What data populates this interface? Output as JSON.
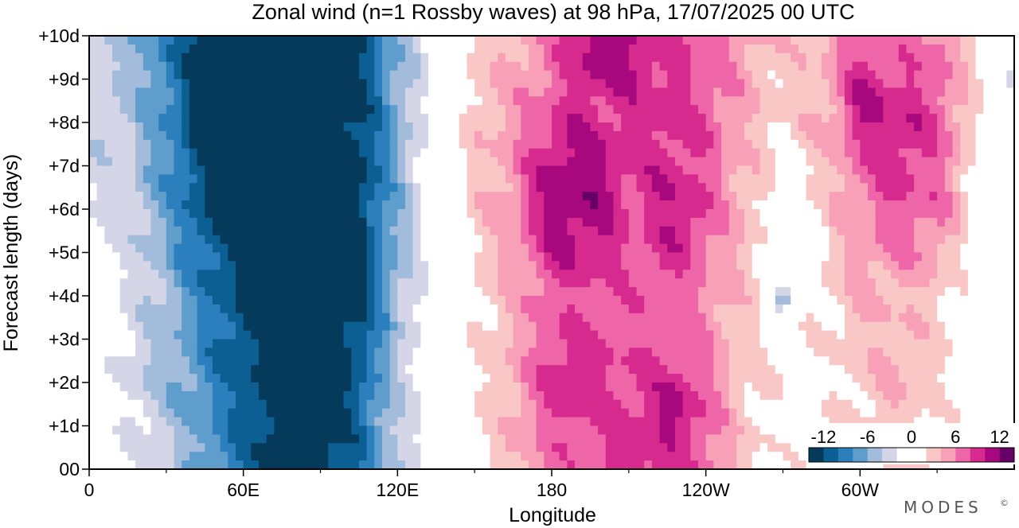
{
  "chart_data": {
    "type": "heatmap",
    "title": "Zonal wind (n=1 Rossby waves) at 98 hPa,  17/07/2025  00 UTC",
    "xlabel": "Longitude",
    "ylabel": "Forecast length (days)",
    "x_ticks": [
      {
        "lon": 0,
        "label": "0"
      },
      {
        "lon": 60,
        "label": "60E"
      },
      {
        "lon": 120,
        "label": "120E"
      },
      {
        "lon": 180,
        "label": "180"
      },
      {
        "lon": 240,
        "label": "120W"
      },
      {
        "lon": 300,
        "label": "60W"
      }
    ],
    "x_minor_ticks": [
      30,
      90,
      150,
      210,
      270,
      330
    ],
    "y_ticks": [
      {
        "day": 0,
        "label": "00"
      },
      {
        "day": 1,
        "label": "+1d"
      },
      {
        "day": 2,
        "label": "+2d"
      },
      {
        "day": 3,
        "label": "+3d"
      },
      {
        "day": 4,
        "label": "+4d"
      },
      {
        "day": 5,
        "label": "+5d"
      },
      {
        "day": 6,
        "label": "+6d"
      },
      {
        "day": 7,
        "label": "+7d"
      },
      {
        "day": 8,
        "label": "+8d"
      },
      {
        "day": 9,
        "label": "+9d"
      },
      {
        "day": 10,
        "label": "+10d"
      }
    ],
    "xlim": [
      0,
      360
    ],
    "ylim": [
      0,
      10
    ],
    "units": "m/s",
    "levels": [
      -14,
      -12,
      -10,
      -8,
      -6,
      -4,
      -2,
      2,
      4,
      6,
      8,
      10,
      12,
      14
    ],
    "colorbar": {
      "labels": [
        {
          "value": -12,
          "text": "-12"
        },
        {
          "value": -6,
          "text": "-6"
        },
        {
          "value": 0,
          "text": "0"
        },
        {
          "value": 6,
          "text": "6"
        },
        {
          "value": 12,
          "text": "12"
        }
      ],
      "colors": [
        "#053a5a",
        "#0b5f92",
        "#2b7fbc",
        "#5e9dcc",
        "#a3bcdb",
        "#d4d6e8",
        "#ffffff",
        "#ffffff",
        "#f9c8c6",
        "#f7a0b8",
        "#ef66a8",
        "#d62a8e",
        "#a8087e",
        "#660066"
      ]
    },
    "field_days": [
      0,
      2,
      4,
      6,
      8,
      10
    ],
    "field_lons": [
      0,
      15,
      30,
      45,
      60,
      75,
      90,
      105,
      120,
      135,
      150,
      165,
      180,
      195,
      210,
      225,
      240,
      255,
      270,
      285,
      300,
      315,
      330,
      345,
      360
    ],
    "field_values": [
      [
        2,
        -1,
        -3,
        -7,
        -10,
        -14,
        -14,
        -10,
        -4,
        0,
        3,
        6,
        8,
        9,
        12,
        10,
        9,
        5,
        3,
        3,
        4,
        5,
        3,
        2,
        2
      ],
      [
        1,
        -3,
        -5,
        -8,
        -11,
        -14,
        -14,
        -11,
        -4,
        0,
        3,
        6,
        8,
        9,
        10,
        10,
        8,
        5,
        3,
        3,
        5,
        6,
        4,
        2,
        1
      ],
      [
        0,
        -2,
        -5,
        -9,
        -13,
        -14,
        -14,
        -13,
        -5,
        0,
        4,
        6,
        9,
        9,
        9,
        9,
        8,
        5,
        2,
        4,
        6,
        6,
        5,
        2,
        0
      ],
      [
        -2,
        -3,
        -7,
        -12,
        -14,
        -14,
        -14,
        -13,
        -6,
        0,
        5,
        7,
        12,
        11,
        9,
        12,
        9,
        6,
        2,
        4,
        8,
        10,
        9,
        3,
        -1
      ],
      [
        -3,
        -4,
        -8,
        -14,
        -14,
        -14,
        -14,
        -13,
        -6,
        0,
        5,
        7,
        9,
        10,
        10,
        11,
        10,
        6,
        4,
        6,
        10,
        12,
        10,
        4,
        -1
      ],
      [
        -4,
        -5,
        -9,
        -14,
        -14,
        -14,
        -14,
        -12,
        -6,
        0,
        5,
        6,
        8,
        10,
        13,
        10,
        9,
        7,
        5,
        6,
        10,
        8,
        9,
        4,
        -3
      ]
    ],
    "blobs": [
      {
        "lon": 188,
        "day": 2.0,
        "value": 11.5,
        "sx": 14,
        "sy": 1.3
      },
      {
        "lon": 228,
        "day": 1.3,
        "value": 12.5,
        "sx": 10,
        "sy": 0.9
      },
      {
        "lon": 190,
        "day": 6.4,
        "value": 13.5,
        "sx": 16,
        "sy": 1.7
      },
      {
        "lon": 230,
        "day": 5.8,
        "value": 12.0,
        "sx": 8,
        "sy": 0.8
      },
      {
        "lon": 200,
        "day": 9.6,
        "value": 13.5,
        "sx": 12,
        "sy": 0.8
      },
      {
        "lon": 304,
        "day": 8.4,
        "value": 12.5,
        "sx": 8,
        "sy": 0.8
      },
      {
        "lon": 60,
        "day": 9.4,
        "value": -12.5,
        "sx": 6,
        "sy": 0.4
      },
      {
        "lon": 270,
        "day": 3.9,
        "value": -5.0,
        "sx": 5,
        "sy": 0.3
      }
    ]
  },
  "branding": {
    "logo_text": "MODES",
    "mark": "©"
  }
}
